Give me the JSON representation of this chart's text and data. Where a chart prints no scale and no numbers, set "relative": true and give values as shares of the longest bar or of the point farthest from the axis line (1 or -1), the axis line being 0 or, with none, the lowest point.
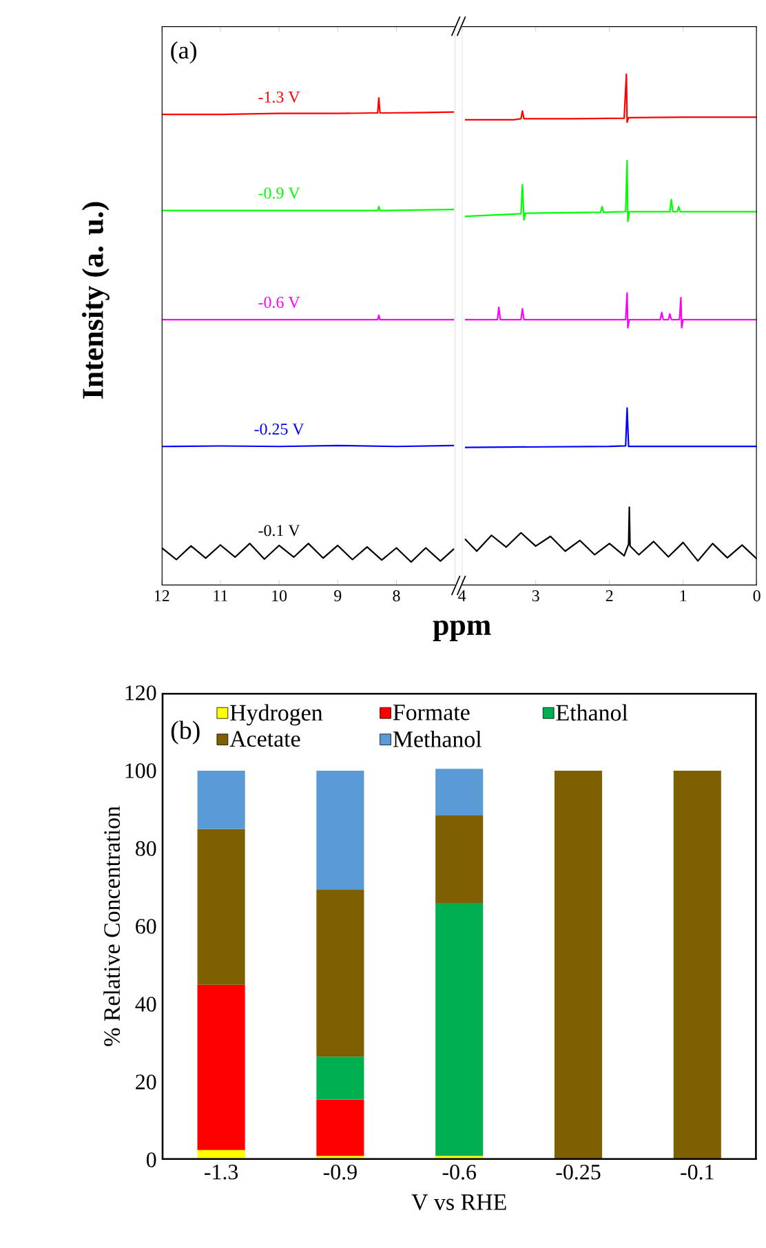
{
  "chart_data": [
    {
      "type": "line",
      "relative": true,
      "tick_labels": "x",
      "ylabel": "Intensity (a. u.)",
      "annotations": [
        "(a)"
      ],
      "xlim": [
        12,
        7
      ],
      "xticks": [
        12,
        11,
        10,
        9,
        8
      ],
      "series": [
        {
          "name": "-1.3 V",
          "color": "#ff0000",
          "x": [
            12,
            11,
            10,
            9,
            8.4,
            8.32,
            8.3,
            8.28,
            8.2,
            7.5,
            7.02
          ],
          "values": [
            0.966,
            0.966,
            0.968,
            0.968,
            0.969,
            0.969,
            1.0,
            0.969,
            0.969,
            0.97,
            0.971
          ]
        },
        {
          "name": "-0.9 V",
          "color": "#00ff00",
          "x": [
            12,
            10,
            8.4,
            8.32,
            8.3,
            8.28,
            8.2,
            7.02
          ],
          "values": [
            0.769,
            0.769,
            0.769,
            0.769,
            0.777,
            0.769,
            0.769,
            0.771
          ]
        },
        {
          "name": "-0.6 V",
          "color": "#ff00ff",
          "x": [
            12,
            10,
            8.4,
            8.32,
            8.3,
            8.28,
            8.2,
            7.02
          ],
          "values": [
            0.545,
            0.545,
            0.545,
            0.545,
            0.554,
            0.545,
            0.545,
            0.545
          ]
        },
        {
          "name": "-0.25 V",
          "color": "#0000ff",
          "x": [
            12,
            11,
            10,
            9,
            8,
            7.02
          ],
          "values": [
            0.285,
            0.286,
            0.285,
            0.287,
            0.285,
            0.287
          ]
        },
        {
          "name": "-0.1 V",
          "color": "#000000",
          "x": [
            12,
            11.75,
            11.5,
            11.25,
            11,
            10.75,
            10.5,
            10.25,
            10,
            9.75,
            9.5,
            9.25,
            9,
            8.75,
            8.5,
            8.25,
            8,
            7.75,
            7.5,
            7.25,
            7.02
          ],
          "values": [
            0.077,
            0.053,
            0.081,
            0.056,
            0.083,
            0.058,
            0.086,
            0.054,
            0.082,
            0.058,
            0.086,
            0.056,
            0.082,
            0.053,
            0.079,
            0.052,
            0.077,
            0.048,
            0.077,
            0.05,
            0.075
          ]
        }
      ]
    },
    {
      "type": "line",
      "relative": true,
      "tick_labels": "x",
      "xlabel": "ppm",
      "xlim": [
        4,
        0
      ],
      "xticks": [
        4,
        3,
        2,
        1,
        0
      ],
      "series": [
        {
          "color": "#ff0000",
          "x": [
            3.96,
            3.3,
            3.2,
            3.18,
            3.16,
            2.5,
            1.8,
            1.77,
            1.76,
            1.74,
            1,
            0
          ],
          "values": [
            0.911,
            0.911,
            0.913,
            0.928,
            0.913,
            0.913,
            0.914,
            1.0,
            0.906,
            0.915,
            0.916,
            0.916
          ]
        },
        {
          "color": "#00ff00",
          "x": [
            3.96,
            3.5,
            3.2,
            3.18,
            3.16,
            3.14,
            2.6,
            2.12,
            2.1,
            2.08,
            1.78,
            1.76,
            1.75,
            1.73,
            1.18,
            1.16,
            1.14,
            1.08,
            1.06,
            1.04,
            0.5,
            0
          ],
          "values": [
            0.722,
            0.725,
            0.727,
            0.784,
            0.715,
            0.728,
            0.729,
            0.73,
            0.741,
            0.73,
            0.731,
            0.831,
            0.712,
            0.731,
            0.731,
            0.755,
            0.731,
            0.731,
            0.741,
            0.731,
            0.731,
            0.731
          ]
        },
        {
          "color": "#ff00ff",
          "x": [
            3.96,
            3.52,
            3.5,
            3.48,
            3.2,
            3.18,
            3.16,
            1.78,
            1.76,
            1.75,
            1.73,
            1.31,
            1.29,
            1.27,
            1.2,
            1.18,
            1.16,
            1.05,
            1.03,
            1.02,
            1.0,
            0
          ],
          "values": [
            0.52,
            0.52,
            0.544,
            0.52,
            0.52,
            0.541,
            0.52,
            0.52,
            0.572,
            0.504,
            0.52,
            0.52,
            0.534,
            0.52,
            0.52,
            0.531,
            0.52,
            0.52,
            0.563,
            0.504,
            0.52,
            0.52
          ]
        },
        {
          "color": "#0000ff",
          "x": [
            3.96,
            2,
            1.78,
            1.76,
            1.74,
            0
          ],
          "values": [
            0.27,
            0.272,
            0.273,
            0.347,
            0.272,
            0.272
          ]
        },
        {
          "color": "#000000",
          "x": [
            3.96,
            3.8,
            3.6,
            3.4,
            3.2,
            3.0,
            2.8,
            2.6,
            2.4,
            2.2,
            2.0,
            1.8,
            1.74,
            1.73,
            1.72,
            1.6,
            1.4,
            1.2,
            1.0,
            0.8,
            0.6,
            0.4,
            0.2,
            0
          ],
          "values": [
            0.091,
            0.067,
            0.098,
            0.075,
            0.103,
            0.077,
            0.096,
            0.067,
            0.088,
            0.06,
            0.082,
            0.058,
            0.081,
            0.153,
            0.077,
            0.06,
            0.086,
            0.056,
            0.084,
            0.048,
            0.082,
            0.054,
            0.079,
            0.052
          ]
        }
      ]
    },
    {
      "type": "bar",
      "stacked": true,
      "legend": "top",
      "xlabel": "V vs RHE",
      "ylabel": "% Relative Concentration",
      "annotations": [
        "(b)"
      ],
      "categories": [
        "-1.3",
        "-0.9",
        "-0.6",
        "-0.25",
        "-0.1"
      ],
      "ylim": [
        0,
        120
      ],
      "yticks": [
        0,
        20,
        40,
        60,
        80,
        100,
        120
      ],
      "series": [
        {
          "name": "Hydrogen",
          "color": "#ffff00",
          "values": [
            2.5,
            1,
            1,
            null,
            null
          ]
        },
        {
          "name": "Formate",
          "color": "#ff0000",
          "values": [
            42.5,
            14.5,
            null,
            null,
            null
          ]
        },
        {
          "name": "Ethanol",
          "color": "#00b050",
          "values": [
            null,
            11,
            65,
            null,
            null
          ]
        },
        {
          "name": "Acetate",
          "color": "#7f6000",
          "values": [
            40,
            43,
            22.5,
            100,
            100
          ]
        },
        {
          "name": "Methanol",
          "color": "#5b9bd5",
          "values": [
            15,
            30.5,
            12,
            null,
            null
          ]
        }
      ]
    }
  ]
}
